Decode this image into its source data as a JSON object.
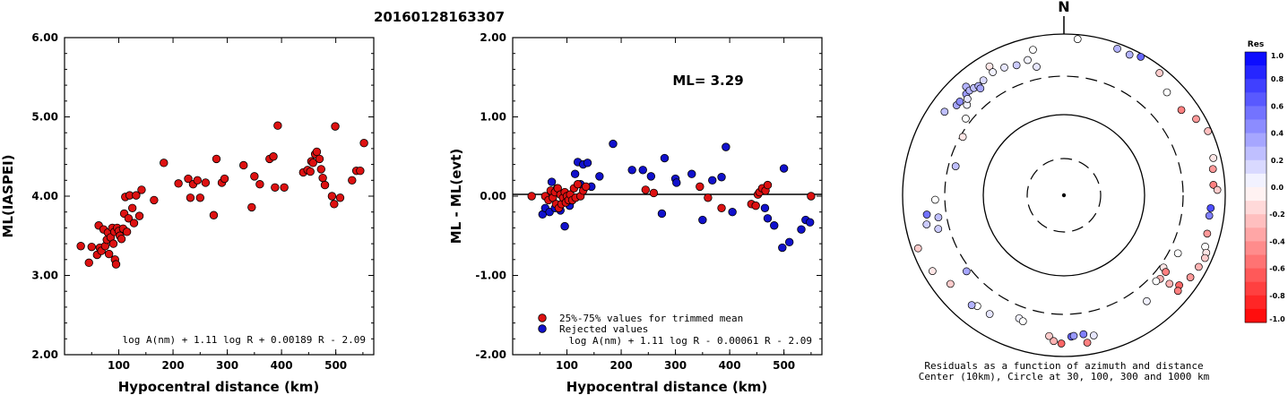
{
  "figure_title": "20160128163307",
  "chart_data": [
    {
      "type": "scatter",
      "name": "ML vs distance",
      "xlabel": "Hypocentral distance (km)",
      "ylabel": "ML(IASPEI)",
      "xlim": [
        0,
        570
      ],
      "ylim": [
        2.0,
        6.0
      ],
      "xticks": [
        "100",
        "200",
        "300",
        "400",
        "500"
      ],
      "yticks": [
        "2.00",
        "3.00",
        "4.00",
        "5.00",
        "6.00"
      ],
      "formula": "log A(nm) + 1.11 log R + 0.00189 R - 2.09",
      "colors": {
        "point": "#dd1111"
      },
      "points": [
        [
          30,
          3.37
        ],
        [
          45,
          3.16
        ],
        [
          50,
          3.36
        ],
        [
          60,
          3.26
        ],
        [
          63,
          3.63
        ],
        [
          65,
          3.35
        ],
        [
          68,
          3.31
        ],
        [
          72,
          3.58
        ],
        [
          75,
          3.37
        ],
        [
          78,
          3.45
        ],
        [
          80,
          3.54
        ],
        [
          82,
          3.27
        ],
        [
          85,
          3.48
        ],
        [
          88,
          3.6
        ],
        [
          90,
          3.4
        ],
        [
          92,
          3.55
        ],
        [
          93,
          3.2
        ],
        [
          95,
          3.14
        ],
        [
          97,
          3.6
        ],
        [
          100,
          3.56
        ],
        [
          102,
          3.5
        ],
        [
          105,
          3.46
        ],
        [
          108,
          3.59
        ],
        [
          110,
          3.78
        ],
        [
          112,
          3.99
        ],
        [
          115,
          3.55
        ],
        [
          118,
          3.72
        ],
        [
          120,
          4.01
        ],
        [
          125,
          3.85
        ],
        [
          128,
          3.66
        ],
        [
          132,
          4.01
        ],
        [
          138,
          3.75
        ],
        [
          142,
          4.08
        ],
        [
          165,
          3.95
        ],
        [
          183,
          4.42
        ],
        [
          210,
          4.16
        ],
        [
          228,
          4.22
        ],
        [
          232,
          3.98
        ],
        [
          237,
          4.15
        ],
        [
          245,
          4.2
        ],
        [
          250,
          3.98
        ],
        [
          260,
          4.17
        ],
        [
          275,
          3.76
        ],
        [
          280,
          4.47
        ],
        [
          290,
          4.17
        ],
        [
          295,
          4.22
        ],
        [
          330,
          4.39
        ],
        [
          345,
          3.86
        ],
        [
          350,
          4.25
        ],
        [
          360,
          4.15
        ],
        [
          378,
          4.47
        ],
        [
          385,
          4.5
        ],
        [
          388,
          4.11
        ],
        [
          393,
          4.89
        ],
        [
          405,
          4.11
        ],
        [
          440,
          4.3
        ],
        [
          448,
          4.33
        ],
        [
          453,
          4.31
        ],
        [
          455,
          4.44
        ],
        [
          458,
          4.42
        ],
        [
          462,
          4.53
        ],
        [
          465,
          4.56
        ],
        [
          470,
          4.47
        ],
        [
          473,
          4.34
        ],
        [
          476,
          4.23
        ],
        [
          480,
          4.14
        ],
        [
          493,
          4.0
        ],
        [
          497,
          3.9
        ],
        [
          499,
          4.88
        ],
        [
          508,
          3.98
        ],
        [
          530,
          4.2
        ],
        [
          538,
          4.32
        ],
        [
          545,
          4.32
        ],
        [
          552,
          4.67
        ]
      ]
    },
    {
      "type": "scatter",
      "name": "ML residual vs distance",
      "xlabel": "Hypocentral distance (km)",
      "ylabel": "ML - ML(evt)",
      "xlim": [
        0,
        570
      ],
      "ylim": [
        -2.0,
        2.0
      ],
      "xticks": [
        "100",
        "200",
        "300",
        "400",
        "500"
      ],
      "yticks": [
        "-2.00",
        "-1.00",
        "0.00",
        "1.00",
        "2.00"
      ],
      "annotation": "ML= 3.29",
      "formula": "log A(nm) + 1.11 log R - 0.00061 R - 2.09",
      "legend": [
        {
          "label": "25%-75% values for trimmed mean",
          "color": "#dd1111"
        },
        {
          "label": "Rejected values",
          "color": "#1111cc"
        }
      ],
      "accepted": [
        [
          35,
          0.0
        ],
        [
          60,
          0.0
        ],
        [
          66,
          -0.05
        ],
        [
          70,
          0.07
        ],
        [
          74,
          -0.02
        ],
        [
          78,
          0.05
        ],
        [
          80,
          -0.1
        ],
        [
          83,
          0.1
        ],
        [
          85,
          -0.15
        ],
        [
          88,
          0.02
        ],
        [
          90,
          -0.1
        ],
        [
          93,
          -0.02
        ],
        [
          96,
          0.05
        ],
        [
          98,
          -0.08
        ],
        [
          100,
          0.0
        ],
        [
          103,
          -0.05
        ],
        [
          106,
          0.02
        ],
        [
          110,
          -0.05
        ],
        [
          113,
          0.1
        ],
        [
          116,
          -0.02
        ],
        [
          120,
          0.15
        ],
        [
          125,
          0.0
        ],
        [
          130,
          0.07
        ],
        [
          135,
          0.12
        ],
        [
          245,
          0.08
        ],
        [
          260,
          0.04
        ],
        [
          345,
          0.12
        ],
        [
          360,
          -0.02
        ],
        [
          385,
          -0.15
        ],
        [
          440,
          -0.1
        ],
        [
          448,
          -0.12
        ],
        [
          452,
          0.02
        ],
        [
          455,
          0.05
        ],
        [
          460,
          0.1
        ],
        [
          466,
          0.07
        ],
        [
          470,
          0.14
        ],
        [
          550,
          0.0
        ]
      ],
      "rejected": [
        [
          55,
          -0.23
        ],
        [
          60,
          -0.15
        ],
        [
          68,
          -0.2
        ],
        [
          72,
          0.18
        ],
        [
          78,
          -0.15
        ],
        [
          82,
          0.1
        ],
        [
          88,
          -0.18
        ],
        [
          92,
          0.0
        ],
        [
          96,
          -0.38
        ],
        [
          105,
          -0.12
        ],
        [
          110,
          -0.05
        ],
        [
          115,
          0.28
        ],
        [
          120,
          0.43
        ],
        [
          125,
          0.15
        ],
        [
          130,
          0.4
        ],
        [
          138,
          0.42
        ],
        [
          145,
          0.12
        ],
        [
          160,
          0.25
        ],
        [
          185,
          0.66
        ],
        [
          220,
          0.33
        ],
        [
          240,
          0.33
        ],
        [
          255,
          0.25
        ],
        [
          275,
          -0.22
        ],
        [
          280,
          0.48
        ],
        [
          300,
          0.22
        ],
        [
          302,
          0.17
        ],
        [
          330,
          0.28
        ],
        [
          350,
          -0.3
        ],
        [
          368,
          0.2
        ],
        [
          385,
          0.24
        ],
        [
          393,
          0.62
        ],
        [
          405,
          -0.2
        ],
        [
          465,
          -0.15
        ],
        [
          470,
          -0.28
        ],
        [
          482,
          -0.37
        ],
        [
          497,
          -0.65
        ],
        [
          500,
          0.35
        ],
        [
          510,
          -0.58
        ],
        [
          532,
          -0.42
        ],
        [
          540,
          -0.3
        ],
        [
          548,
          -0.33
        ]
      ]
    },
    {
      "type": "scatter",
      "name": "Residual azimuth-distance map",
      "north_label": "N",
      "caption_1": "Residuals as a function of azimuth and distance",
      "caption_2": "Center (10km), Circle at 30, 100, 300 and 1000 km",
      "rings_km": [
        30,
        100,
        300,
        1000
      ],
      "colorbar": {
        "title": "Res",
        "labels": [
          "1.0",
          "0.8",
          "0.6",
          "0.4",
          "0.2",
          "0.0",
          "-0.2",
          "-0.4",
          "-0.6",
          "-0.8",
          "-1.0"
        ]
      },
      "stations": [
        [
          168,
          600,
          0.1
        ],
        [
          200,
          420,
          0.05
        ],
        [
          255,
          410,
          0.2
        ],
        [
          260,
          380,
          0.25
        ],
        [
          262,
          520,
          0.55
        ],
        [
          232,
          340,
          0.35
        ],
        [
          285,
          245,
          0.25
        ],
        [
          330,
          700,
          -0.1
        ],
        [
          318,
          650,
          0.3
        ],
        [
          305,
          640,
          0.25
        ],
        [
          310,
          545,
          0.35
        ],
        [
          312,
          545,
          0.45
        ],
        [
          316,
          555,
          0.4
        ],
        [
          318,
          560,
          0.3
        ],
        [
          320,
          545,
          0.25
        ],
        [
          322,
          525,
          0.3
        ],
        [
          325,
          550,
          0.15
        ],
        [
          330,
          580,
          0.05
        ],
        [
          335,
          560,
          0.1
        ],
        [
          340,
          520,
          0.2
        ],
        [
          345,
          545,
          0.05
        ],
        [
          348,
          425,
          0.1
        ],
        [
          348,
          700,
          0.0
        ],
        [
          5,
          880,
          0.0
        ],
        [
          20,
          860,
          0.3
        ],
        [
          25,
          840,
          0.3
        ],
        [
          29,
          920,
          0.6
        ],
        [
          38,
          840,
          -0.2
        ],
        [
          45,
          640,
          0.0
        ],
        [
          54,
          630,
          -0.5
        ],
        [
          60,
          780,
          -0.4
        ],
        [
          66,
          900,
          -0.25
        ],
        [
          76,
          810,
          -0.1
        ],
        [
          80,
          750,
          -0.4
        ],
        [
          86,
          720,
          -0.5
        ],
        [
          88,
          800,
          -0.2
        ],
        [
          95,
          670,
          0.7
        ],
        [
          98,
          660,
          0.5
        ],
        [
          105,
          690,
          -0.4
        ],
        [
          110,
          730,
          0.0
        ],
        [
          112,
          800,
          -0.1
        ],
        [
          114,
          820,
          -0.2
        ],
        [
          118,
          780,
          -0.3
        ],
        [
          123,
          740,
          -0.4
        ],
        [
          128,
          650,
          -0.6
        ],
        [
          130,
          700,
          -0.5
        ],
        [
          117,
          385,
          0.0
        ],
        [
          126,
          335,
          -0.1
        ],
        [
          127,
          380,
          -0.5
        ],
        [
          131,
          380,
          -0.3
        ],
        [
          133,
          365,
          0.0
        ],
        [
          130,
          510,
          -0.3
        ],
        [
          142,
          465,
          0.05
        ],
        [
          172,
          550,
          0.5
        ],
        [
          177,
          570,
          0.6
        ],
        [
          176,
          560,
          0.4
        ],
        [
          186,
          570,
          -0.2
        ],
        [
          184,
          650,
          -0.3
        ],
        [
          181,
          690,
          -0.6
        ],
        [
          171,
          710,
          -0.5
        ],
        [
          198,
          440,
          0.0
        ],
        [
          212,
          545,
          0.1
        ],
        [
          218,
          555,
          0.0
        ],
        [
          220,
          600,
          0.3
        ],
        [
          232,
          610,
          -0.2
        ],
        [
          240,
          760,
          -0.1
        ],
        [
          258,
          550,
          0.2
        ],
        [
          268,
          395,
          0.0
        ],
        [
          250,
          840,
          -0.2
        ],
        [
          300,
          280,
          -0.1
        ],
        [
          308,
          350,
          0.0
        ],
        [
          313,
          440,
          0.05
        ],
        [
          315,
          490,
          0.1
        ],
        [
          322,
          480,
          0.35
        ]
      ]
    }
  ]
}
